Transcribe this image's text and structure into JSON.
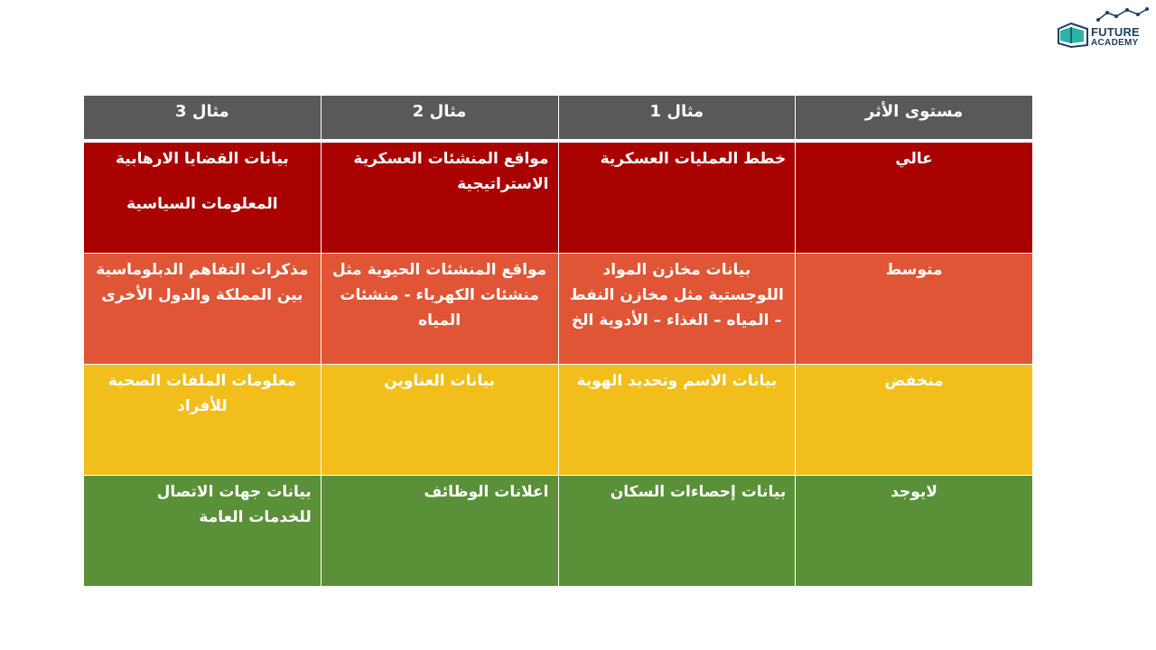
{
  "logo": {
    "line1": "FUTURE",
    "line2": "ACADEMY",
    "icon": "book-chart-icon"
  },
  "table": {
    "headers": [
      "مستوى الأثر",
      "مثال 1",
      "مثال 2",
      "مثال 3"
    ],
    "rows": [
      {
        "level": "عالي",
        "color": "#a90000",
        "ex1": "خطط العمليات العسكرية",
        "ex2": "مواقع المنشئات العسكرية الاستراتيجية",
        "ex3a": "بيانات القضايا الارهابية",
        "ex3b": "المعلومات السياسية"
      },
      {
        "level": "متوسط",
        "color": "#e05535",
        "ex1": "بيانات مخازن المواد اللوجستية مثل مخازن النفط – المياه – الغذاء – الأدوية الخ",
        "ex2": "مواقع المنشئات الحيوية مثل منشئات الكهرباء - منشئات المياه",
        "ex3": "مذكرات التفاهم الدبلوماسية بين المملكة والدول الأخرى"
      },
      {
        "level": "منخفض",
        "color": "#f2be1c",
        "ex1": "بيانات الاسم وتحديد الهوية",
        "ex2": "بيانات العناوين",
        "ex3": "معلومات الملفات الصحية للأفراد"
      },
      {
        "level": "لايوجد",
        "color": "#5a9138",
        "ex1": "بيانات إحصاءات السكان",
        "ex2": "اعلانات الوظائف",
        "ex3": "بيانات جهات الاتصال للخدمات العامة"
      }
    ]
  }
}
